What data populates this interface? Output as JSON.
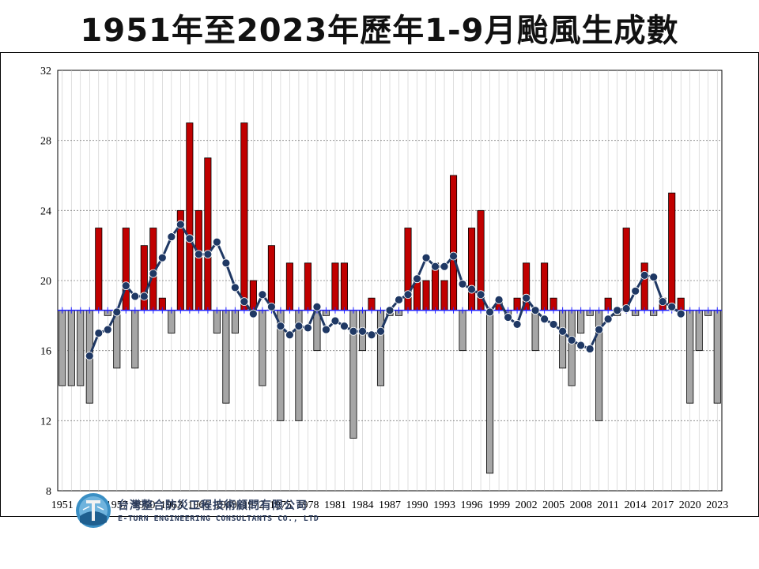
{
  "title": "1951年至2023年歷年1-9月颱風生成數",
  "logo": {
    "name_zh": "台灣整合防災工程技術顧問有限公司",
    "name_en": "E-TURN ENGINEERING CONSULTANTS CO., LTD"
  },
  "colors": {
    "above_avg_bar": "#c00000",
    "below_avg_bar": "#a6a6a6",
    "moving_avg_line": "#1f3864",
    "average_line": "#2020ff",
    "grid": "#808080"
  },
  "chart_data": {
    "type": "bar",
    "title": "1951年至2023年歷年1-9月颱風生成數",
    "xlabel": "",
    "ylabel": "",
    "ylim": [
      8,
      32
    ],
    "yticks": [
      8,
      12,
      16,
      20,
      24,
      28,
      32
    ],
    "xticks": [
      1951,
      1954,
      1957,
      1960,
      1963,
      1966,
      1969,
      1972,
      1975,
      1978,
      1981,
      1984,
      1987,
      1990,
      1993,
      1996,
      1999,
      2002,
      2005,
      2008,
      2011,
      2014,
      2017,
      2020,
      2023
    ],
    "grid": "vertical and horizontal dotted",
    "baseline": 18.3,
    "categories": [
      1951,
      1952,
      1953,
      1954,
      1955,
      1956,
      1957,
      1958,
      1959,
      1960,
      1961,
      1962,
      1963,
      1964,
      1965,
      1966,
      1967,
      1968,
      1969,
      1970,
      1971,
      1972,
      1973,
      1974,
      1975,
      1976,
      1977,
      1978,
      1979,
      1980,
      1981,
      1982,
      1983,
      1984,
      1985,
      1986,
      1987,
      1988,
      1989,
      1990,
      1991,
      1992,
      1993,
      1994,
      1995,
      1996,
      1997,
      1998,
      1999,
      2000,
      2001,
      2002,
      2003,
      2004,
      2005,
      2006,
      2007,
      2008,
      2009,
      2010,
      2011,
      2012,
      2013,
      2014,
      2015,
      2016,
      2017,
      2018,
      2019,
      2020,
      2021,
      2022,
      2023
    ],
    "values": [
      14,
      14,
      14,
      13,
      23,
      18,
      15,
      23,
      15,
      22,
      23,
      19,
      17,
      24,
      29,
      24,
      27,
      17,
      13,
      17,
      29,
      20,
      14,
      22,
      12,
      21,
      12,
      21,
      16,
      18,
      21,
      21,
      11,
      16,
      19,
      14,
      18,
      18,
      23,
      20,
      20,
      21,
      20,
      26,
      16,
      23,
      24,
      9,
      19,
      18,
      19,
      21,
      16,
      21,
      19,
      15,
      14,
      17,
      18,
      12,
      19,
      18,
      23,
      18,
      21,
      18,
      19,
      25,
      19,
      13,
      16,
      18,
      13
    ],
    "moving_average": {
      "x": [
        1954,
        1955,
        1956,
        1957,
        1958,
        1959,
        1960,
        1961,
        1962,
        1963,
        1964,
        1965,
        1966,
        1967,
        1968,
        1969,
        1970,
        1971,
        1972,
        1973,
        1974,
        1975,
        1976,
        1977,
        1978,
        1979,
        1980,
        1981,
        1982,
        1983,
        1984,
        1985,
        1986,
        1987,
        1988,
        1989,
        1990,
        1991,
        1992,
        1993,
        1994,
        1995,
        1996,
        1997,
        1998,
        1999,
        2000,
        2001,
        2002,
        2003,
        2004,
        2005,
        2006,
        2007,
        2008,
        2009,
        2010,
        2011,
        2012,
        2013,
        2014,
        2015,
        2016,
        2017,
        2018,
        2019
      ],
      "y": [
        15.7,
        17.0,
        17.2,
        18.2,
        19.7,
        19.1,
        19.1,
        20.4,
        21.3,
        22.5,
        23.2,
        22.4,
        21.5,
        21.5,
        22.2,
        21.0,
        19.6,
        18.8,
        18.1,
        19.2,
        18.5,
        17.4,
        16.9,
        17.4,
        17.3,
        18.5,
        17.2,
        17.7,
        17.4,
        17.1,
        17.1,
        16.9,
        17.1,
        18.3,
        18.9,
        19.2,
        20.1,
        21.3,
        20.8,
        20.8,
        21.4,
        19.8,
        19.5,
        19.2,
        18.2,
        18.9,
        17.9,
        17.5,
        19.0,
        18.3,
        17.8,
        17.5,
        17.1,
        16.6,
        16.3,
        16.1,
        17.2,
        17.8,
        18.3,
        18.4,
        19.4,
        20.3,
        20.2,
        18.8,
        18.5,
        18.1
      ]
    }
  }
}
